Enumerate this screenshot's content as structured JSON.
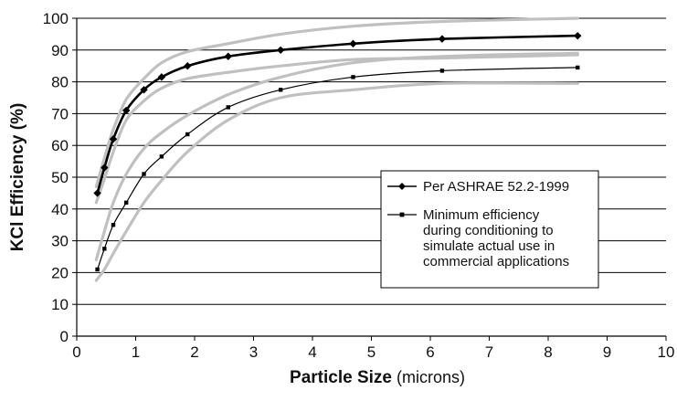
{
  "chart_data": {
    "type": "line",
    "xlabel": {
      "main": "Particle Size",
      "unit": " (microns)"
    },
    "ylabel": "KCl Efficiency (%)",
    "xlim": [
      0,
      10
    ],
    "ylim": [
      0,
      100
    ],
    "x_ticks": [
      "0",
      "1",
      "2",
      "3",
      "4",
      "5",
      "6",
      "7",
      "8",
      "9",
      "10"
    ],
    "y_ticks": [
      "0",
      "10",
      "20",
      "30",
      "40",
      "50",
      "60",
      "70",
      "80",
      "90",
      "100"
    ],
    "grid": "horizontal",
    "legend_position": "right-middle",
    "series": [
      {
        "name": "Per ASHRAE 52.2-1999",
        "marker": "diamond",
        "color": "#000000",
        "x": [
          0.35,
          0.47,
          0.62,
          0.84,
          1.14,
          1.44,
          1.88,
          2.57,
          3.46,
          4.69,
          6.2,
          8.5
        ],
        "y": [
          45,
          53,
          62,
          71,
          77.5,
          81.5,
          85,
          88,
          90,
          92,
          93.5,
          94.5
        ]
      },
      {
        "name": "Minimum efficiency during conditioning to simulate actual use in commercial applications",
        "marker": "square",
        "color": "#000000",
        "x": [
          0.35,
          0.47,
          0.62,
          0.84,
          1.14,
          1.44,
          1.88,
          2.57,
          3.46,
          4.69,
          6.2,
          8.5
        ],
        "y": [
          21,
          27.5,
          35,
          42,
          51,
          56.5,
          63.5,
          72,
          77.5,
          81.5,
          83.5,
          84.5
        ]
      }
    ],
    "bands": [
      {
        "color": "#c0c0c0",
        "x": [
          0.33,
          0.47,
          0.62,
          0.84,
          1.14,
          1.44,
          1.88,
          2.57,
          3.46,
          4.69,
          6.2,
          8.5
        ],
        "y": [
          47,
          56,
          65,
          74.5,
          81,
          86,
          89.5,
          92,
          95,
          97.5,
          99,
          100
        ]
      },
      {
        "color": "#c0c0c0",
        "x": [
          0.33,
          0.47,
          0.62,
          0.84,
          1.14,
          1.44,
          1.88,
          2.57,
          3.46,
          4.69,
          6.2,
          8.5
        ],
        "y": [
          42,
          49.5,
          58,
          68,
          74,
          78,
          81,
          83,
          85,
          87,
          87.5,
          88.5
        ]
      },
      {
        "color": "#c0c0c0",
        "x": [
          0.33,
          0.47,
          0.62,
          0.84,
          1.14,
          1.44,
          1.88,
          2.57,
          3.46,
          4.69,
          6.2,
          8.5
        ],
        "y": [
          24,
          33,
          42,
          51,
          59,
          64,
          69.5,
          76,
          81.5,
          86,
          88,
          89
        ]
      },
      {
        "color": "#c0c0c0",
        "x": [
          0.33,
          0.47,
          0.62,
          0.84,
          1.14,
          1.44,
          1.88,
          2.57,
          3.46,
          4.69,
          6.2,
          8.5
        ],
        "y": [
          17.5,
          21,
          26,
          33,
          42,
          49,
          58,
          68,
          75,
          77.5,
          79.5,
          79.5
        ]
      }
    ]
  }
}
